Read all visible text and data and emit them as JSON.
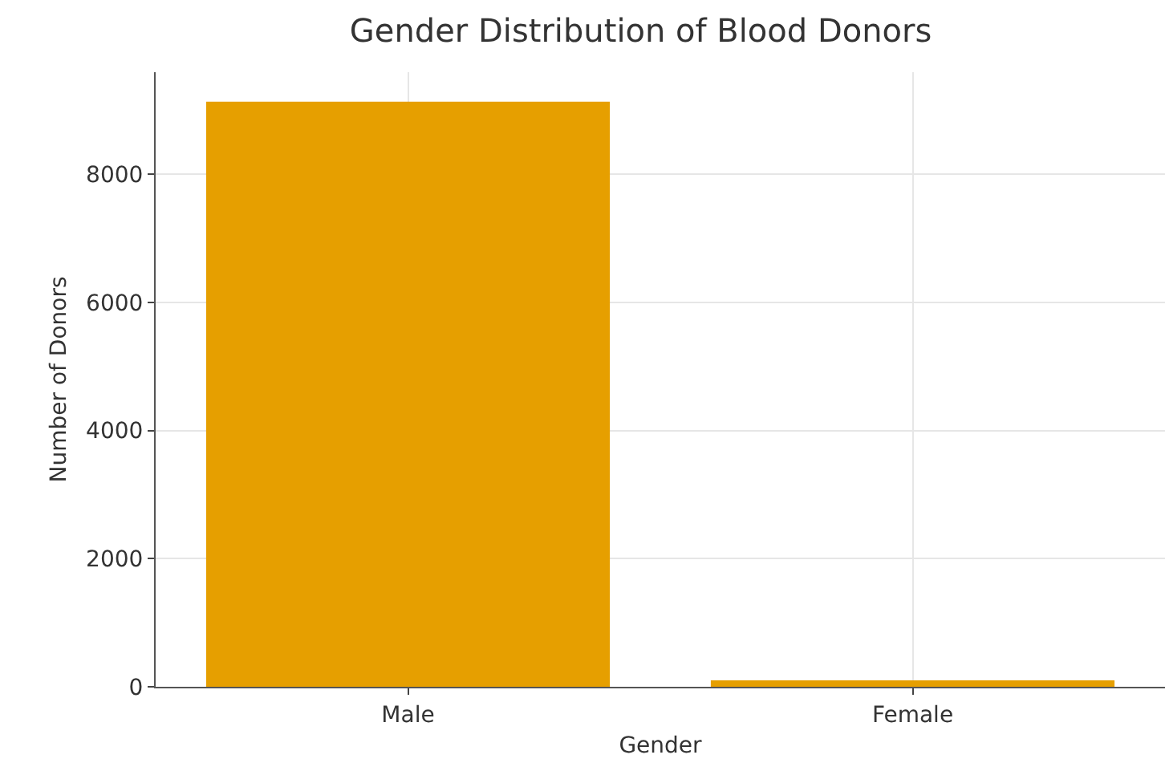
{
  "chart_data": {
    "type": "bar",
    "title": "Gender Distribution of Blood Donors",
    "xlabel": "Gender",
    "ylabel": "Number of Donors",
    "categories": [
      "Male",
      "Female"
    ],
    "values": [
      9130,
      100
    ],
    "color": "#e69f00",
    "ylim": [
      0,
      9590
    ],
    "yticks": [
      0,
      2000,
      4000,
      6000,
      8000
    ],
    "grid": true
  }
}
